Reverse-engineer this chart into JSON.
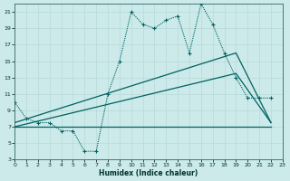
{
  "xlabel": "Humidex (Indice chaleur)",
  "bg_color": "#cceaea",
  "line_color": "#006060",
  "xlim": [
    0,
    23
  ],
  "ylim": [
    3,
    22
  ],
  "xticks": [
    0,
    1,
    2,
    3,
    4,
    5,
    6,
    7,
    8,
    9,
    10,
    11,
    12,
    13,
    14,
    15,
    16,
    17,
    18,
    19,
    20,
    21,
    22,
    23
  ],
  "yticks": [
    3,
    5,
    7,
    9,
    11,
    13,
    15,
    17,
    19,
    21
  ],
  "line1_x": [
    0,
    1,
    2,
    3,
    4,
    5,
    6,
    7,
    8,
    9,
    10,
    11,
    12,
    13,
    14,
    15,
    16,
    17,
    18,
    19,
    20,
    21,
    22
  ],
  "line1_y": [
    10,
    8,
    7.5,
    7.5,
    6.5,
    6.5,
    4,
    4,
    11,
    15,
    21,
    19.5,
    19,
    20,
    20.5,
    16,
    22,
    19.5,
    16,
    13,
    10.5,
    10.5,
    10.5
  ],
  "line2_x": [
    0,
    22
  ],
  "line2_y": [
    7,
    7
  ],
  "line3_x": [
    0,
    19,
    22
  ],
  "line3_y": [
    7,
    13.5,
    7.5
  ],
  "line4_x": [
    0,
    19,
    22
  ],
  "line4_y": [
    7.5,
    16,
    7.5
  ]
}
